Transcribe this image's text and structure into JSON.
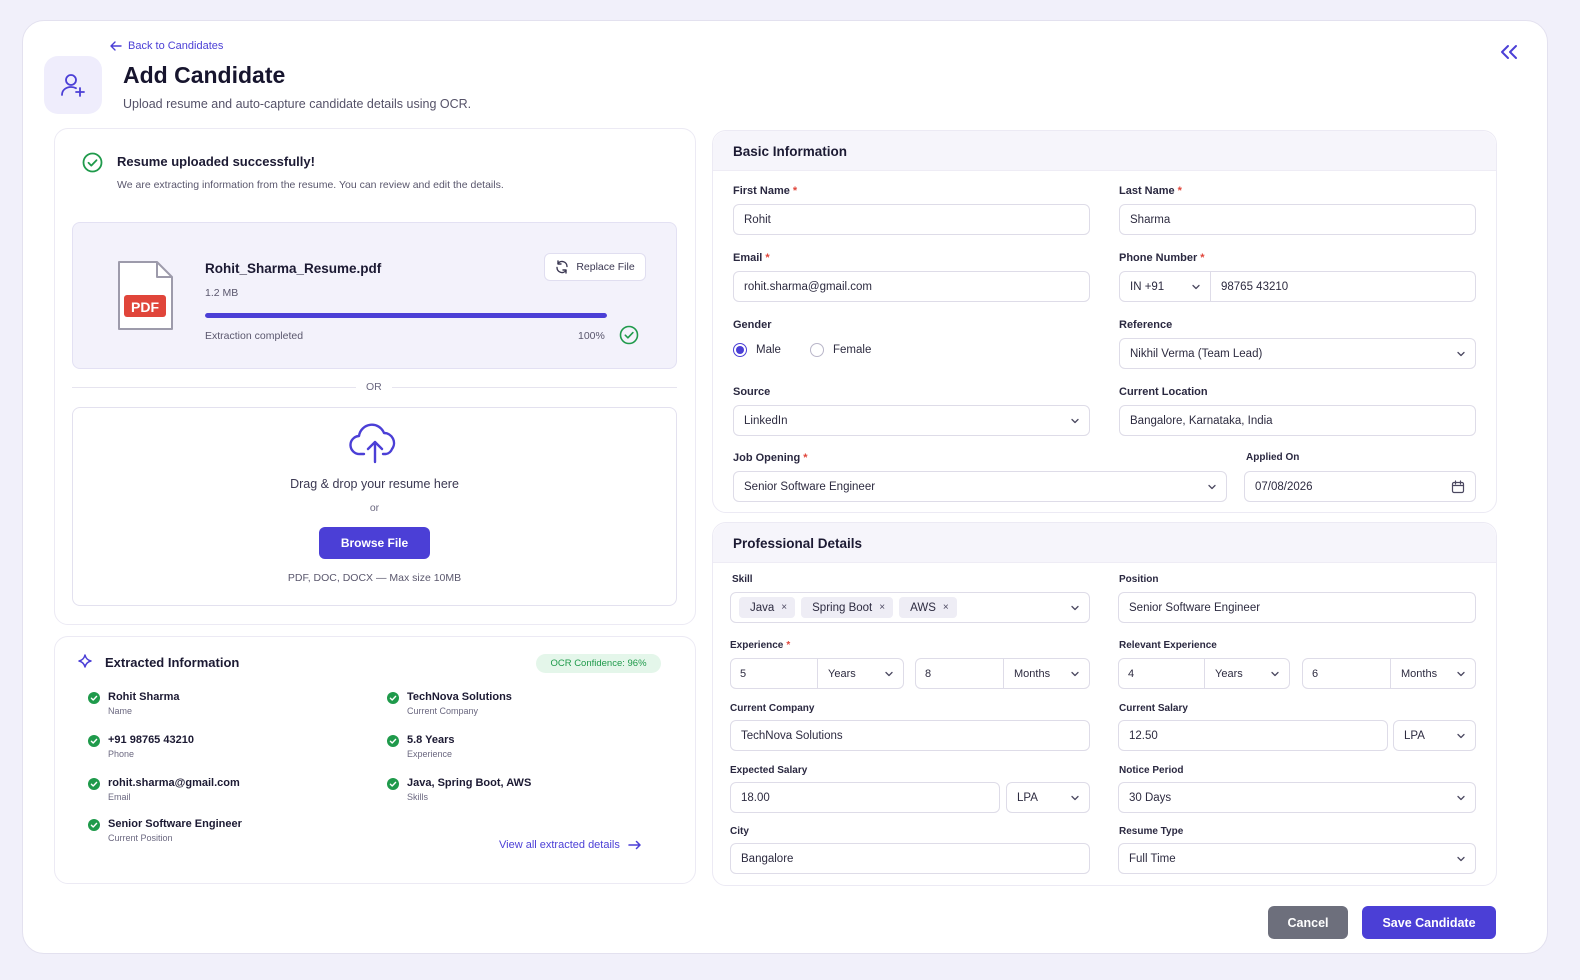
{
  "header": {
    "back_label": "Back to Candidates",
    "title": "Add Candidate",
    "subtitle": "Upload resume and auto-capture candidate details using OCR."
  },
  "upload": {
    "success_title": "Resume uploaded successfully!",
    "success_sub": "We are extracting information from the resume. You can review and edit the details.",
    "file_name": "Rohit_Sharma_Resume.pdf",
    "file_size": "1.2 MB",
    "file_icon_label": "PDF",
    "replace_label": "Replace File",
    "progress_text": "Extraction completed",
    "progress_pct": "100%",
    "progress_value": 1.0,
    "or_label": "OR",
    "drop_text": "Drag & drop your resume here",
    "drop_or": "or",
    "browse_label": "Browse File",
    "hint": "PDF, DOC, DOCX — Max size 10MB"
  },
  "extracted": {
    "title": "Extracted Information",
    "ocr_badge": "OCR Confidence: 96%",
    "left": [
      {
        "value": "Rohit Sharma",
        "key": "Name"
      },
      {
        "value": "+91 98765 43210",
        "key": "Phone"
      },
      {
        "value": "rohit.sharma@gmail.com",
        "key": "Email"
      },
      {
        "value": "Senior Software Engineer",
        "key": "Current Position"
      }
    ],
    "right": [
      {
        "value": "TechNova Solutions",
        "key": "Current Company"
      },
      {
        "value": "5.8 Years",
        "key": "Experience"
      },
      {
        "value": "Java, Spring Boot, AWS",
        "key": "Skills"
      }
    ],
    "view_all": "View all extracted details"
  },
  "basic": {
    "title": "Basic Information",
    "first_name_label": "First Name",
    "first_name": "Rohit",
    "last_name_label": "Last Name",
    "last_name": "Sharma",
    "email_label": "Email",
    "email": "rohit.sharma@gmail.com",
    "phone_label": "Phone Number",
    "phone_code": "IN +91",
    "phone": "98765 43210",
    "gender_label": "Gender",
    "gender_male": "Male",
    "gender_female": "Female",
    "reference_label": "Reference",
    "reference": "Nikhil Verma (Team Lead)",
    "source_label": "Source",
    "source": "LinkedIn",
    "location_label": "Current Location",
    "location": "Bangalore, Karnataka, India",
    "job_label": "Job Opening",
    "job": "Senior Software Engineer",
    "applied_label": "Applied On",
    "applied": "07/08/2026",
    "required_mark": "*"
  },
  "prof": {
    "title": "Professional Details",
    "skill_label": "Skill",
    "skills": [
      "Java",
      "Spring Boot",
      "AWS"
    ],
    "position_label": "Position",
    "position": "Senior Software Engineer",
    "exp_label": "Experience",
    "exp_years": "5",
    "exp_years_unit": "Years",
    "exp_months": "8",
    "exp_months_unit": "Months",
    "rel_label": "Relevant Experience",
    "rel_years": "4",
    "rel_years_unit": "Years",
    "rel_months": "6",
    "rel_months_unit": "Months",
    "company_label": "Current Company",
    "company": "TechNova Solutions",
    "cur_salary_label": "Current Salary",
    "cur_salary": "12.50",
    "cur_salary_unit": "LPA",
    "exp_salary_label": "Expected Salary",
    "exp_salary": "18.00",
    "exp_salary_unit": "LPA",
    "notice_label": "Notice Period",
    "notice": "30 Days",
    "city_label": "City",
    "city": "Bangalore",
    "resume_type_label": "Resume Type",
    "resume_type": "Full Time",
    "remove_glyph": "×"
  },
  "actions": {
    "cancel": "Cancel",
    "save": "Save Candidate"
  },
  "colors": {
    "accent": "#4b3fd6",
    "success": "#1f9a4b",
    "pdf_red": "#e0453a"
  }
}
